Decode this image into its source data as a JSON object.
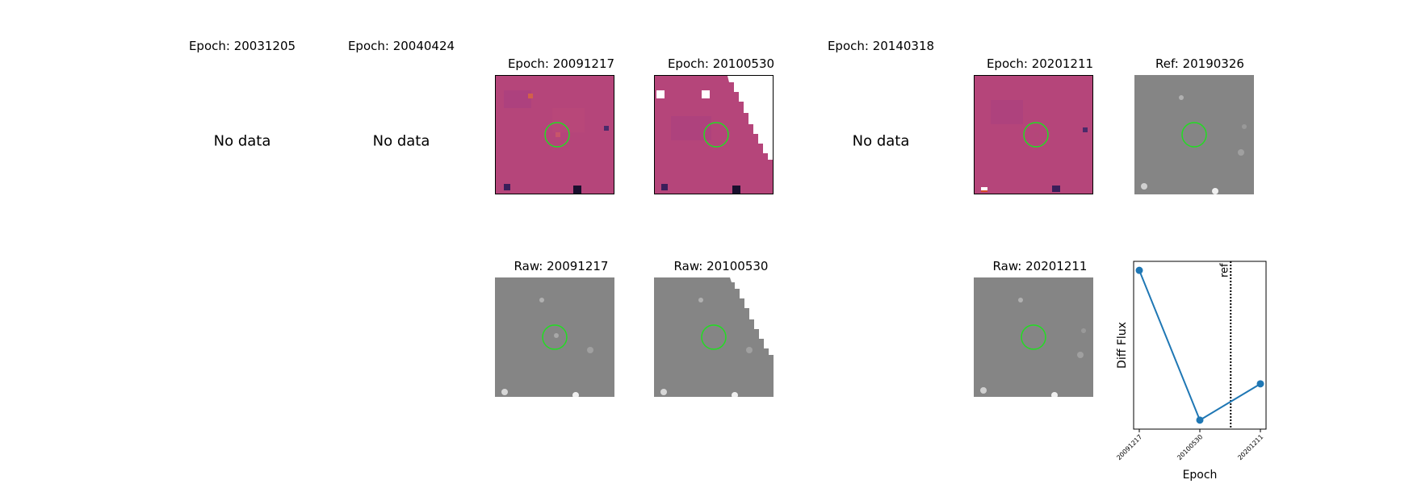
{
  "top_row": {
    "titles": [
      "Epoch: 20031205",
      "Epoch: 20040424",
      "Epoch: 20091217",
      "Epoch: 20100530",
      "Epoch: 20140318",
      "Epoch: 20201211",
      "Ref: 20190326"
    ],
    "no_data_label": "No data"
  },
  "bottom_row": {
    "titles": [
      "Raw: 20091217",
      "Raw: 20100530",
      "Raw: 20201211"
    ]
  },
  "colors": {
    "diff_bg": "#b5457a",
    "raw_bg": "#858585",
    "circle": "#22dd22",
    "series": "#1f77b4"
  },
  "chart_data": {
    "type": "line",
    "x": [
      "20091217",
      "20100530",
      "20201211"
    ],
    "series": [
      {
        "values": [
          0.9,
          -0.75,
          -0.35
        ]
      }
    ],
    "ylabel": "Diff Flux",
    "xlabel": "Epoch",
    "ref_line": {
      "label": "ref",
      "position_between": [
        "20100530",
        "20201211"
      ]
    },
    "grid": false
  }
}
